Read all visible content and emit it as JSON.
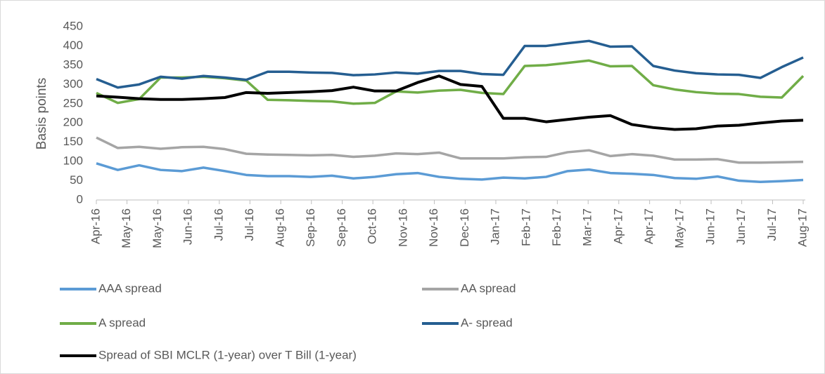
{
  "chart_data": {
    "type": "line",
    "x": [
      0,
      1,
      2,
      3,
      4,
      5,
      6,
      7,
      8,
      9,
      10,
      11,
      12,
      13,
      14,
      15,
      16,
      17,
      18,
      19,
      20,
      21,
      22,
      23,
      24,
      25,
      26,
      27,
      28,
      29,
      30,
      31,
      32,
      33
    ],
    "xlim": [
      0,
      33
    ],
    "xticks": [
      {
        "value": 0,
        "label": "Apr-16"
      },
      {
        "value": 1.43,
        "label": "May-16"
      },
      {
        "value": 2.87,
        "label": "May-16"
      },
      {
        "value": 4.3,
        "label": "Jun-16"
      },
      {
        "value": 5.74,
        "label": "Jul-16"
      },
      {
        "value": 7.17,
        "label": "Jul-16"
      },
      {
        "value": 8.61,
        "label": "Aug-16"
      },
      {
        "value": 10.04,
        "label": "Sep-16"
      },
      {
        "value": 11.48,
        "label": "Sep-16"
      },
      {
        "value": 12.91,
        "label": "Oct-16"
      },
      {
        "value": 14.35,
        "label": "Nov-16"
      },
      {
        "value": 15.78,
        "label": "Nov-16"
      },
      {
        "value": 17.22,
        "label": "Dec-16"
      },
      {
        "value": 18.65,
        "label": "Jan-17"
      },
      {
        "value": 20.09,
        "label": "Feb-17"
      },
      {
        "value": 21.52,
        "label": "Feb-17"
      },
      {
        "value": 22.96,
        "label": "Mar-17"
      },
      {
        "value": 24.39,
        "label": "Apr-17"
      },
      {
        "value": 25.83,
        "label": "Apr-17"
      },
      {
        "value": 27.26,
        "label": "May-17"
      },
      {
        "value": 28.7,
        "label": "Jun-17"
      },
      {
        "value": 30.13,
        "label": "Jun-17"
      },
      {
        "value": 31.57,
        "label": "Jul-17"
      },
      {
        "value": 33,
        "label": "Aug-17"
      }
    ],
    "ylabel": "Basis points",
    "ylim": [
      0,
      450
    ],
    "yticks": [
      0,
      50,
      100,
      150,
      200,
      250,
      300,
      350,
      400,
      450
    ],
    "grid": false,
    "legend": "bottom",
    "series": [
      {
        "name": "AAA spread",
        "color": "#5b9bd5",
        "values": [
          95,
          78,
          90,
          78,
          75,
          84,
          75,
          65,
          62,
          62,
          60,
          63,
          56,
          60,
          67,
          70,
          60,
          55,
          53,
          58,
          56,
          60,
          75,
          79,
          70,
          68,
          65,
          57,
          55,
          61,
          50,
          47,
          49,
          52
        ]
      },
      {
        "name": "AA spread",
        "color": "#a5a5a5",
        "values": [
          162,
          135,
          138,
          133,
          137,
          138,
          132,
          120,
          118,
          117,
          116,
          117,
          112,
          115,
          121,
          119,
          123,
          108,
          108,
          108,
          111,
          112,
          124,
          129,
          114,
          119,
          115,
          105,
          105,
          106,
          97,
          97,
          98,
          99
        ]
      },
      {
        "name": "A spread",
        "color": "#70ad47",
        "values": [
          278,
          252,
          262,
          318,
          318,
          320,
          316,
          310,
          260,
          259,
          257,
          256,
          250,
          252,
          282,
          279,
          284,
          286,
          278,
          275,
          348,
          350,
          356,
          362,
          347,
          348,
          298,
          287,
          280,
          276,
          275,
          268,
          266,
          322
        ]
      },
      {
        "name": "A- spread",
        "color": "#255e91",
        "values": [
          314,
          292,
          300,
          320,
          315,
          322,
          318,
          312,
          333,
          333,
          331,
          330,
          324,
          326,
          331,
          328,
          335,
          335,
          327,
          325,
          400,
          400,
          407,
          413,
          398,
          399,
          348,
          336,
          329,
          326,
          325,
          317,
          345,
          370
        ]
      },
      {
        "name": "Spread of SBI MCLR (1-year) over T Bill (1-year)",
        "color": "#000000",
        "values": [
          270,
          267,
          263,
          261,
          261,
          263,
          266,
          279,
          277,
          279,
          281,
          284,
          293,
          283,
          283,
          305,
          322,
          300,
          295,
          212,
          212,
          203,
          209,
          215,
          219,
          196,
          188,
          183,
          185,
          192,
          194,
          200,
          205,
          207
        ]
      }
    ]
  }
}
